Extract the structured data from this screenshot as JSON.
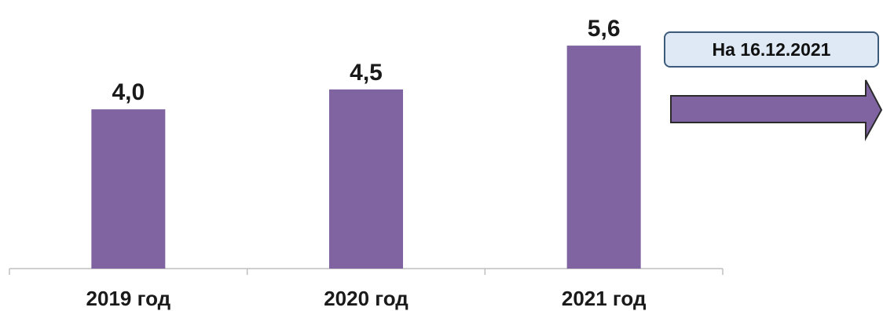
{
  "chart_data": {
    "type": "bar",
    "categories": [
      "2019 год",
      "2020 год",
      "2021 год"
    ],
    "values": [
      4.0,
      4.5,
      5.6
    ],
    "value_labels": [
      "4,0",
      "4,5",
      "5,6"
    ],
    "ylim": [
      0,
      6.2
    ],
    "title": "",
    "xlabel": "",
    "ylabel": "",
    "grid": false,
    "bar_color": "#8064a2",
    "axis_color": "#bfbfbf",
    "text_color": "#1a1a1a"
  },
  "annotation": {
    "text": "На 16.12.2021",
    "arrow_color": "#8064a2",
    "arrow_direction": "right",
    "box_fill": "#dfe9f5",
    "box_border": "#3c5a7a"
  }
}
